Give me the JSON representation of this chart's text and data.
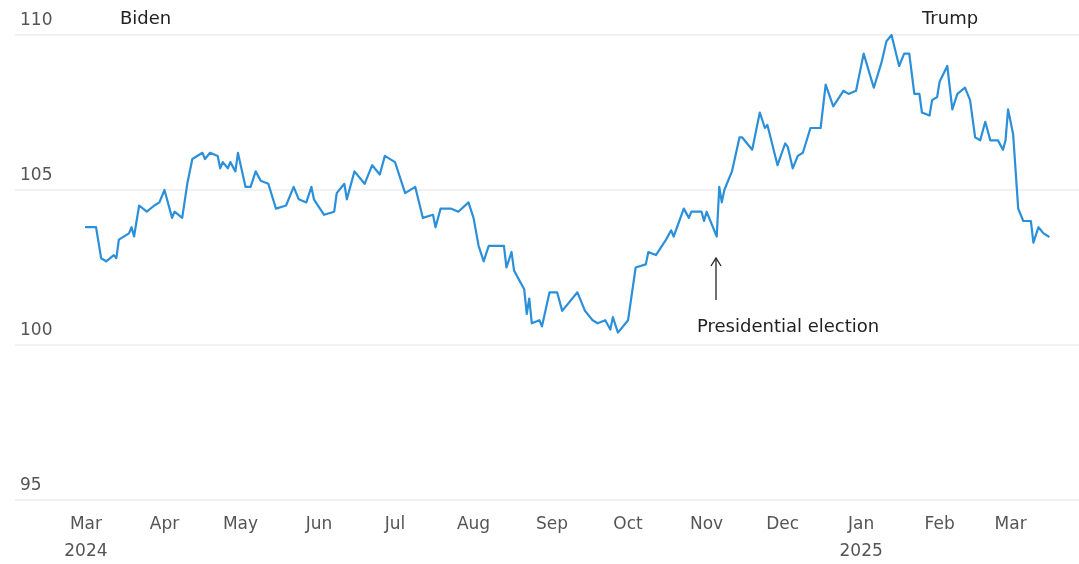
{
  "chart_data": {
    "type": "line",
    "xlim": [
      "2024-02-02",
      "2025-03-28"
    ],
    "ylim": [
      95,
      110
    ],
    "yticks": [
      95,
      100,
      105,
      110
    ],
    "grid": "y",
    "marker": "none",
    "line_style": "solid",
    "xticks": [
      {
        "value": "2024-03-01",
        "label": "Mar\n2024"
      },
      {
        "value": "2024-04-01",
        "label": "Apr"
      },
      {
        "value": "2024-05-01",
        "label": "May"
      },
      {
        "value": "2024-06-01",
        "label": "Jun"
      },
      {
        "value": "2024-07-01",
        "label": "Jul"
      },
      {
        "value": "2024-08-01",
        "label": "Aug"
      },
      {
        "value": "2024-09-01",
        "label": "Sep"
      },
      {
        "value": "2024-10-01",
        "label": "Oct"
      },
      {
        "value": "2024-11-01",
        "label": "Nov"
      },
      {
        "value": "2024-12-01",
        "label": "Dec"
      },
      {
        "value": "2025-01-01",
        "label": "Jan\n2025"
      },
      {
        "value": "2025-02-01",
        "label": "Feb"
      },
      {
        "value": "2025-03-01",
        "label": "Mar"
      }
    ],
    "annotations": [
      "Biden",
      "Trump",
      "Presidential election"
    ],
    "x": [
      "2024-03-01",
      "2024-03-05",
      "2024-03-07",
      "2024-03-09",
      "2024-03-12",
      "2024-03-13",
      "2024-03-14",
      "2024-03-18",
      "2024-03-19",
      "2024-03-20",
      "2024-03-22",
      "2024-03-25",
      "2024-03-28",
      "2024-03-30",
      "2024-04-01",
      "2024-04-04",
      "2024-04-05",
      "2024-04-08",
      "2024-04-10",
      "2024-04-12",
      "2024-04-16",
      "2024-04-17",
      "2024-04-19",
      "2024-04-22",
      "2024-04-23",
      "2024-04-24",
      "2024-04-26",
      "2024-04-27",
      "2024-04-29",
      "2024-04-30",
      "2024-05-03",
      "2024-05-05",
      "2024-05-07",
      "2024-05-09",
      "2024-05-12",
      "2024-05-15",
      "2024-05-19",
      "2024-05-22",
      "2024-05-24",
      "2024-05-27",
      "2024-05-29",
      "2024-05-30",
      "2024-06-03",
      "2024-06-07",
      "2024-06-08",
      "2024-06-11",
      "2024-06-12",
      "2024-06-15",
      "2024-06-19",
      "2024-06-22",
      "2024-06-25",
      "2024-06-27",
      "2024-07-01",
      "2024-07-05",
      "2024-07-09",
      "2024-07-12",
      "2024-07-16",
      "2024-07-17",
      "2024-07-19",
      "2024-07-23",
      "2024-07-26",
      "2024-07-30",
      "2024-08-01",
      "2024-08-03",
      "2024-08-05",
      "2024-08-07",
      "2024-08-13",
      "2024-08-14",
      "2024-08-16",
      "2024-08-17",
      "2024-08-21",
      "2024-08-22",
      "2024-08-23",
      "2024-08-24",
      "2024-08-27",
      "2024-08-28",
      "2024-08-31",
      "2024-09-03",
      "2024-09-05",
      "2024-09-11",
      "2024-09-14",
      "2024-09-17",
      "2024-09-19",
      "2024-09-22",
      "2024-09-24",
      "2024-09-25",
      "2024-09-27",
      "2024-10-01",
      "2024-10-04",
      "2024-10-08",
      "2024-10-09",
      "2024-10-12",
      "2024-10-16",
      "2024-10-18",
      "2024-10-19",
      "2024-10-23",
      "2024-10-25",
      "2024-10-26",
      "2024-10-30",
      "2024-10-31",
      "2024-11-01",
      "2024-11-05",
      "2024-11-06",
      "2024-11-07",
      "2024-11-08",
      "2024-11-11",
      "2024-11-14",
      "2024-11-15",
      "2024-11-19",
      "2024-11-22",
      "2024-11-24",
      "2024-11-25",
      "2024-11-29",
      "2024-12-02",
      "2024-12-03",
      "2024-12-05",
      "2024-12-07",
      "2024-12-09",
      "2024-12-12",
      "2024-12-16",
      "2024-12-18",
      "2024-12-21",
      "2024-12-25",
      "2024-12-27",
      "2024-12-30",
      "2025-01-02",
      "2025-01-06",
      "2025-01-09",
      "2025-01-11",
      "2025-01-13",
      "2025-01-16",
      "2025-01-18",
      "2025-01-20",
      "2025-01-22",
      "2025-01-24",
      "2025-01-25",
      "2025-01-28",
      "2025-01-29",
      "2025-01-31",
      "2025-02-01",
      "2025-02-04",
      "2025-02-06",
      "2025-02-08",
      "2025-02-11",
      "2025-02-13",
      "2025-02-15",
      "2025-02-17",
      "2025-02-19",
      "2025-02-21",
      "2025-02-24",
      "2025-02-26",
      "2025-02-27",
      "2025-02-28",
      "2025-03-02",
      "2025-03-04",
      "2025-03-06",
      "2025-03-09",
      "2025-03-10",
      "2025-03-12",
      "2025-03-14",
      "2025-03-16"
    ],
    "series": [
      {
        "color": "#2b8fd9",
        "values": [
          103.8,
          103.8,
          102.8,
          102.7,
          102.9,
          102.8,
          103.4,
          103.6,
          103.8,
          103.5,
          104.5,
          104.3,
          104.5,
          104.6,
          105.0,
          104.1,
          104.3,
          104.1,
          105.2,
          106.0,
          106.2,
          106.0,
          106.2,
          106.1,
          105.7,
          105.9,
          105.7,
          105.9,
          105.6,
          106.2,
          105.1,
          105.1,
          105.6,
          105.3,
          105.2,
          104.4,
          104.5,
          105.1,
          104.7,
          104.6,
          105.1,
          104.7,
          104.2,
          104.3,
          104.9,
          105.2,
          104.7,
          105.6,
          105.2,
          105.8,
          105.5,
          106.1,
          105.9,
          104.9,
          105.1,
          104.1,
          104.2,
          103.8,
          104.4,
          104.4,
          104.3,
          104.6,
          104.1,
          103.2,
          102.7,
          103.2,
          103.2,
          102.5,
          103.0,
          102.4,
          101.8,
          101.0,
          101.5,
          100.7,
          100.8,
          100.6,
          101.7,
          101.7,
          101.1,
          101.7,
          101.1,
          100.8,
          100.7,
          100.8,
          100.5,
          100.9,
          100.4,
          100.8,
          102.5,
          102.6,
          103.0,
          102.9,
          103.4,
          103.7,
          103.5,
          104.4,
          104.1,
          104.3,
          104.3,
          104.0,
          104.3,
          103.5,
          105.1,
          104.6,
          105.0,
          105.6,
          106.7,
          106.7,
          106.3,
          107.5,
          107.0,
          107.1,
          105.8,
          106.5,
          106.4,
          105.7,
          106.1,
          106.2,
          107.0,
          107.0,
          108.4,
          107.7,
          108.2,
          108.1,
          108.2,
          109.4,
          108.3,
          109.1,
          109.8,
          110.0,
          109.0,
          109.4,
          109.4,
          108.1,
          108.1,
          107.5,
          107.4,
          107.9,
          108.0,
          108.5,
          109.0,
          107.6,
          108.1,
          108.3,
          107.9,
          106.7,
          106.6,
          107.2,
          106.6,
          106.6,
          106.3,
          106.6,
          107.6,
          106.8,
          104.4,
          104.0,
          104.0,
          103.3,
          103.8,
          103.6,
          103.5
        ]
      }
    ]
  }
}
